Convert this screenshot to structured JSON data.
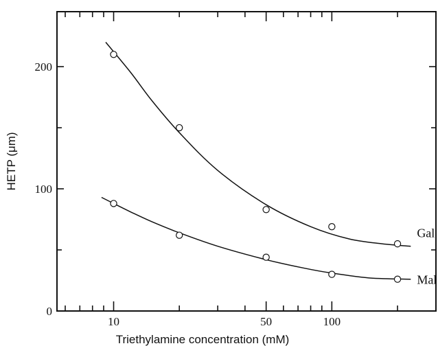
{
  "chart_data": {
    "type": "scatter",
    "title": "",
    "xlabel": "Triethylamine concentration (mM)",
    "ylabel": "HETP (μm)",
    "x_scale": "log",
    "xlim": [
      5.5,
      300
    ],
    "ylim": [
      0,
      245
    ],
    "x_major_ticks": [
      10,
      50,
      100
    ],
    "y_major_ticks": [
      0,
      100,
      200
    ],
    "grid": false,
    "series": [
      {
        "name": "Gal",
        "x": [
          10,
          20,
          50,
          100,
          200
        ],
        "y": [
          210,
          150,
          83,
          69,
          55
        ],
        "fit_curve": {
          "x": [
            9.2,
            12,
            15,
            20,
            30,
            50,
            80,
            120,
            170,
            230
          ],
          "y": [
            220,
            195,
            172,
            146,
            115,
            87,
            69,
            59,
            55,
            53
          ]
        }
      },
      {
        "name": "Mal",
        "x": [
          10,
          20,
          50,
          100,
          200
        ],
        "y": [
          88,
          62,
          44,
          30,
          26
        ],
        "fit_curve": {
          "x": [
            8.8,
            10,
            12,
            15,
            20,
            30,
            50,
            75,
            100,
            150,
            230
          ],
          "y": [
            93,
            88,
            81,
            73,
            64,
            53,
            42,
            35,
            31,
            27,
            26
          ]
        }
      }
    ]
  }
}
